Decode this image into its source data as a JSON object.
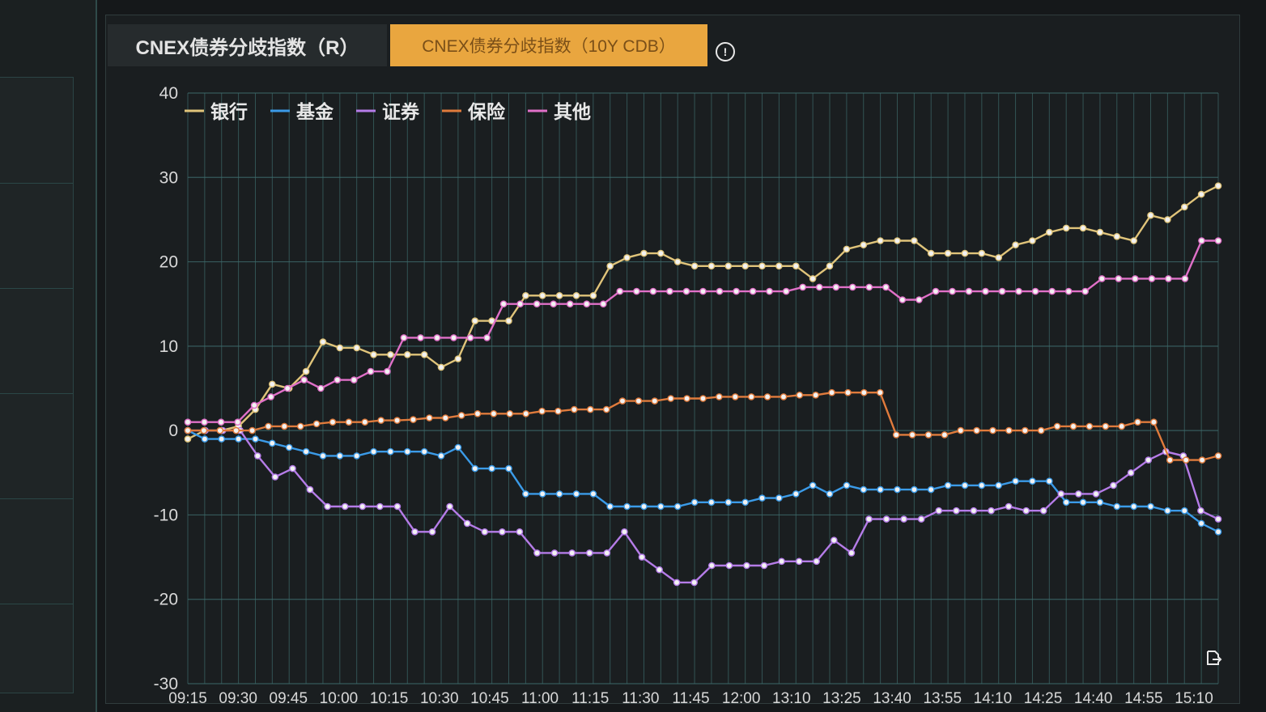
{
  "tabs": [
    {
      "label": "CNEX债券分歧指数（R）",
      "active": true
    },
    {
      "label": "CNEX债券分歧指数（10Y CDB）",
      "active": false
    }
  ],
  "info_icon_glyph": "!",
  "colors": {
    "background": "#15181a",
    "grid": "#3d6a6a",
    "axis_text": "#d8d8d8",
    "tab_active_bg": "#262b2d",
    "tab_accent": "#e9a63f"
  },
  "icons": {
    "info": "info-circle-icon",
    "export": "export-icon"
  },
  "chart_data": {
    "type": "line",
    "title": "",
    "xlabel": "",
    "ylabel": "",
    "ylim": [
      -30,
      40
    ],
    "yticks": [
      "40",
      "30",
      "20",
      "10",
      "0",
      "-10",
      "-20",
      "-30"
    ],
    "xtick_labels": [
      "09:15",
      "09:30",
      "09:45",
      "10:00",
      "10:15",
      "10:30",
      "10:45",
      "11:00",
      "11:15",
      "11:30",
      "11:45",
      "12:00",
      "13:10",
      "13:25",
      "13:40",
      "13:55",
      "14:10",
      "14:25",
      "14:40",
      "14:55",
      "15:10"
    ],
    "grid": true,
    "legend_position": "top-left",
    "series": [
      {
        "name": "银行",
        "color": "#e0c47a",
        "values": [
          -1,
          0,
          0,
          0.5,
          2.5,
          5.5,
          5,
          7,
          10.5,
          9.8,
          9.8,
          9,
          9,
          9,
          9,
          7.5,
          8.5,
          13,
          13,
          13,
          16,
          16,
          16,
          16,
          16,
          19.5,
          20.5,
          21,
          21,
          20,
          19.5,
          19.5,
          19.5,
          19.5,
          19.5,
          19.5,
          19.5,
          18,
          19.5,
          21.5,
          22,
          22.5,
          22.5,
          22.5,
          21,
          21,
          21,
          21,
          20.5,
          22,
          22.5,
          23.5,
          24,
          24,
          23.5,
          23,
          22.5,
          25.5,
          25,
          26.5,
          28,
          29
        ]
      },
      {
        "name": "基金",
        "color": "#3b9be8",
        "values": [
          0,
          -1,
          -1,
          -1,
          -1,
          -1.5,
          -2,
          -2.5,
          -3,
          -3,
          -3,
          -2.5,
          -2.5,
          -2.5,
          -2.5,
          -3,
          -2,
          -4.5,
          -4.5,
          -4.5,
          -7.5,
          -7.5,
          -7.5,
          -7.5,
          -7.5,
          -9,
          -9,
          -9,
          -9,
          -9,
          -8.5,
          -8.5,
          -8.5,
          -8.5,
          -8,
          -8,
          -7.5,
          -6.5,
          -7.5,
          -6.5,
          -7,
          -7,
          -7,
          -7,
          -7,
          -6.5,
          -6.5,
          -6.5,
          -6.5,
          -6,
          -6,
          -6,
          -8.5,
          -8.5,
          -8.5,
          -9,
          -9,
          -9,
          -9.5,
          -9.5,
          -11,
          -12
        ]
      },
      {
        "name": "证券",
        "color": "#b57ce8",
        "values": [
          0,
          0,
          0,
          0,
          -3,
          -5.5,
          -4.5,
          -7,
          -9,
          -9,
          -9,
          -9,
          -9,
          -12,
          -12,
          -9,
          -11,
          -12,
          -12,
          -12,
          -14.5,
          -14.5,
          -14.5,
          -14.5,
          -14.5,
          -12,
          -15,
          -16.5,
          -18,
          -18,
          -16,
          -16,
          -16,
          -16,
          -15.5,
          -15.5,
          -15.5,
          -13,
          -14.5,
          -10.5,
          -10.5,
          -10.5,
          -10.5,
          -9.5,
          -9.5,
          -9.5,
          -9.5,
          -9,
          -9.5,
          -9.5,
          -7.5,
          -7.5,
          -7.5,
          -6.5,
          -5,
          -3.5,
          -2.5,
          -3,
          -9.5,
          -10.5
        ]
      },
      {
        "name": "保险",
        "color": "#e07b3c",
        "values": [
          0,
          0,
          0,
          0,
          0,
          0.5,
          0.5,
          0.5,
          0.8,
          1,
          1,
          1,
          1.2,
          1.2,
          1.3,
          1.5,
          1.5,
          1.8,
          2,
          2,
          2,
          2,
          2.3,
          2.3,
          2.5,
          2.5,
          2.5,
          3.5,
          3.5,
          3.5,
          3.8,
          3.8,
          3.8,
          4,
          4,
          4,
          4,
          4,
          4.2,
          4.2,
          4.5,
          4.5,
          4.5,
          4.5,
          -0.5,
          -0.5,
          -0.5,
          -0.5,
          0,
          0,
          0,
          0,
          0,
          0,
          0.5,
          0.5,
          0.5,
          0.5,
          0.5,
          1,
          1,
          -3.5,
          -3.5,
          -3.5,
          -3
        ]
      },
      {
        "name": "其他",
        "color": "#e070c8",
        "values": [
          1,
          1,
          1,
          1,
          3,
          4,
          5,
          6,
          5,
          6,
          6,
          7,
          7,
          11,
          11,
          11,
          11,
          11,
          11,
          15,
          15,
          15,
          15,
          15,
          15,
          15,
          16.5,
          16.5,
          16.5,
          16.5,
          16.5,
          16.5,
          16.5,
          16.5,
          16.5,
          16.5,
          16.5,
          17,
          17,
          17,
          17,
          17,
          17,
          15.5,
          15.5,
          16.5,
          16.5,
          16.5,
          16.5,
          16.5,
          16.5,
          16.5,
          16.5,
          16.5,
          16.5,
          18,
          18,
          18,
          18,
          18,
          18,
          22.5,
          22.5
        ]
      }
    ]
  }
}
